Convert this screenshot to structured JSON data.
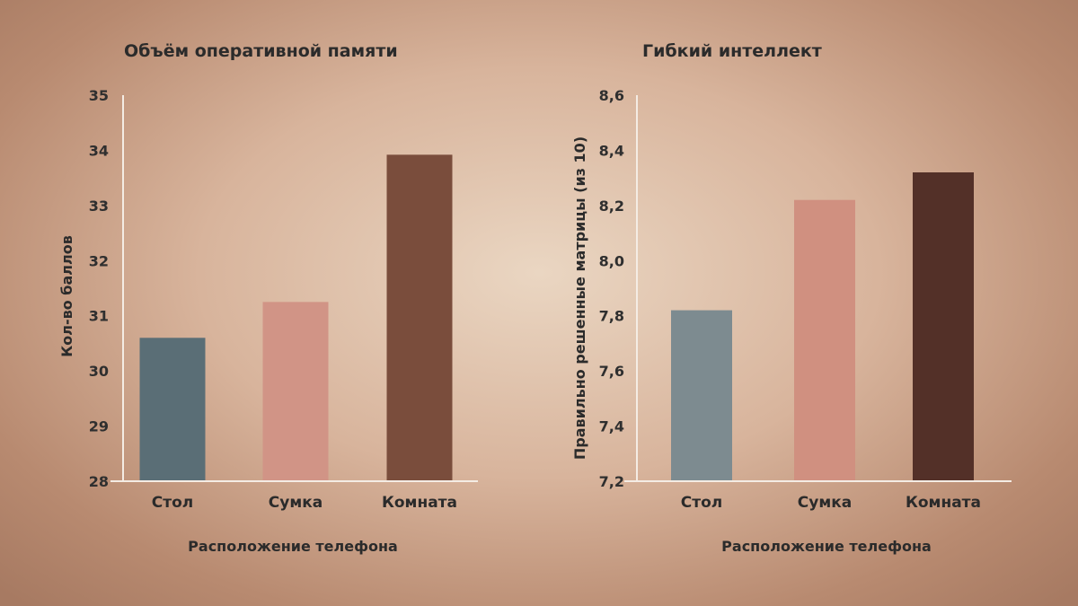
{
  "chart_data": [
    {
      "type": "bar",
      "title": "Объём оперативной памяти",
      "xlabel": "Расположение телефона",
      "ylabel": "Кол-во баллов",
      "categories": [
        "Стол",
        "Сумка",
        "Комната"
      ],
      "values": [
        30.6,
        31.25,
        33.92
      ],
      "colors": [
        "#5a6e76",
        "#d19486",
        "#7a4d3c"
      ],
      "ylim": [
        28,
        35
      ],
      "yticks": [
        "28",
        "29",
        "30",
        "31",
        "32",
        "33",
        "34",
        "35"
      ],
      "grid": false
    },
    {
      "type": "bar",
      "title": "Гибкий интеллект",
      "xlabel": "Расположение телефона",
      "ylabel": "Правильно решенные матрицы (из 10)",
      "categories": [
        "Стол",
        "Сумка",
        "Комната"
      ],
      "values": [
        7.82,
        8.22,
        8.32
      ],
      "colors": [
        "#7d8b90",
        "#d09080",
        "#533028"
      ],
      "ylim": [
        7.2,
        8.6
      ],
      "yticks": [
        "7,2",
        "7,4",
        "7,6",
        "7,8",
        "8,0",
        "8,2",
        "8,4",
        "8,6"
      ],
      "grid": false
    }
  ]
}
